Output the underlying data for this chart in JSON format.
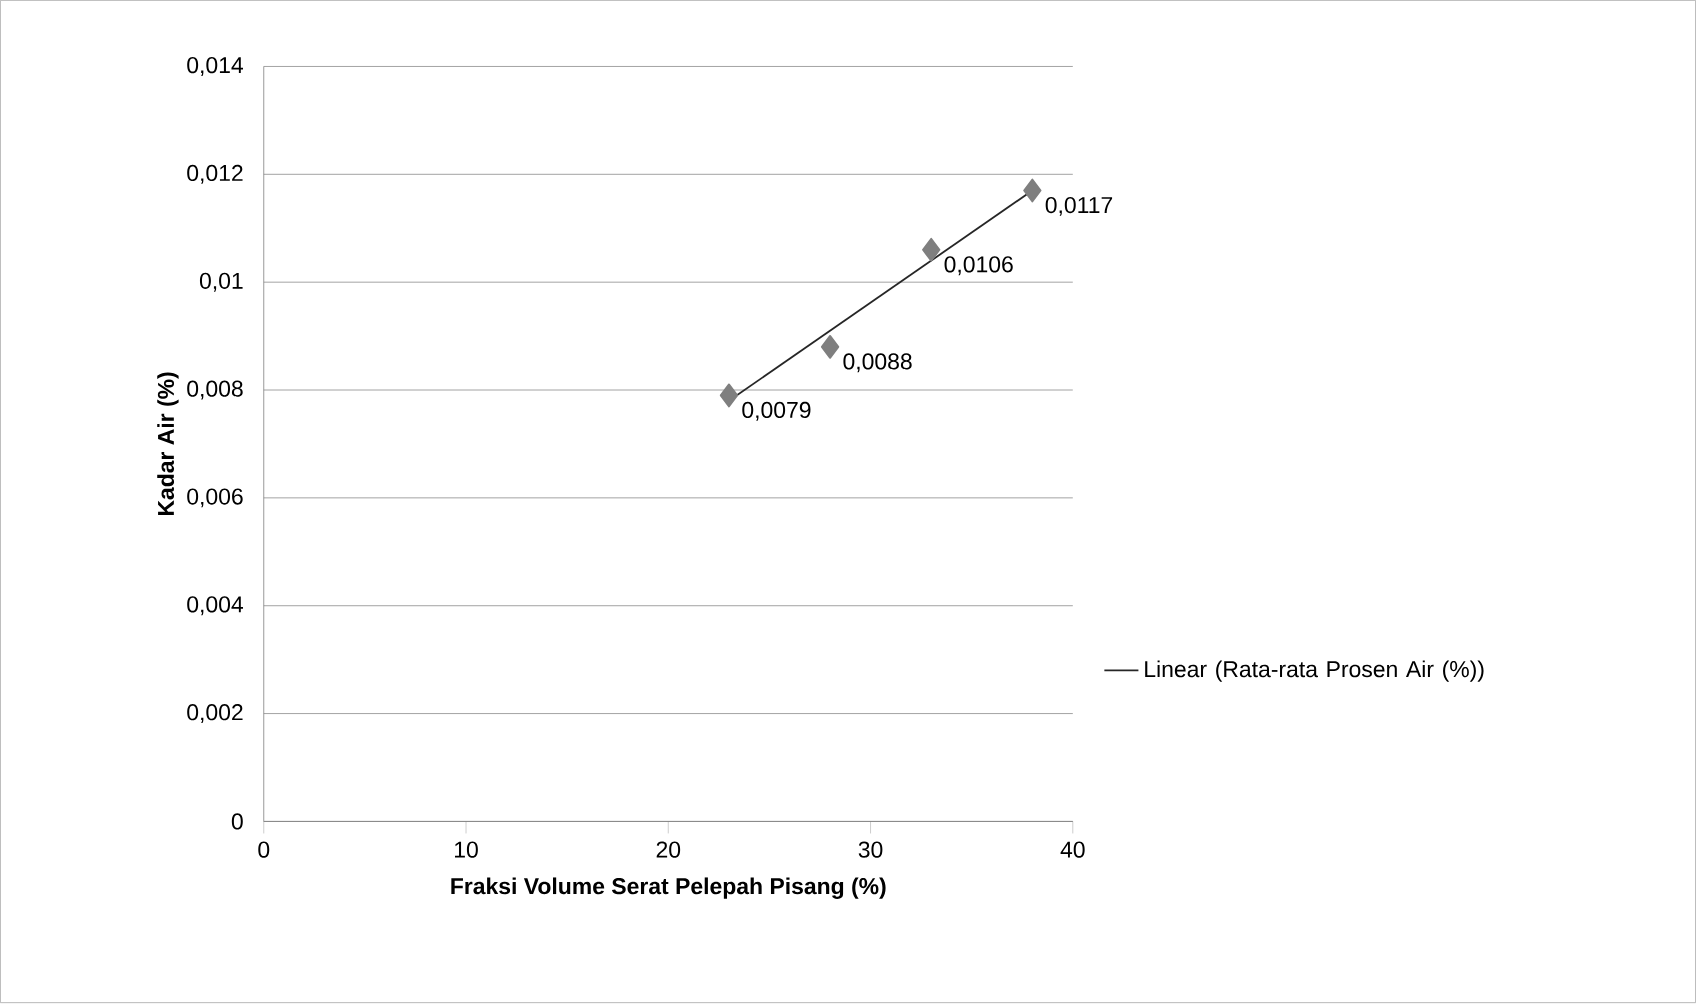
{
  "chart_data": {
    "type": "scatter",
    "xlabel": "Fraksi Volume Serat Pelepah Pisang (%)",
    "ylabel": "Kadar Air (%)",
    "xlim": [
      0,
      40
    ],
    "xticks": [
      0,
      10,
      20,
      30,
      40
    ],
    "ylim": [
      0,
      0.014
    ],
    "yticks": [
      {
        "value": 0,
        "label": "0"
      },
      {
        "value": 0.002,
        "label": "0,002"
      },
      {
        "value": 0.004,
        "label": "0,004"
      },
      {
        "value": 0.006,
        "label": "0,006"
      },
      {
        "value": 0.008,
        "label": "0,008"
      },
      {
        "value": 0.01,
        "label": "0,01"
      },
      {
        "value": 0.012,
        "label": "0,012"
      },
      {
        "value": 0.014,
        "label": "0,014"
      }
    ],
    "grid": "y",
    "legend": "right",
    "marker": "diamond",
    "series": [
      {
        "x": [
          23,
          28,
          33,
          38
        ],
        "values": [
          0.0079,
          0.0088,
          0.0106,
          0.0117
        ],
        "color": "#7f7f7f",
        "value_labels": [
          "0,0079",
          "0,0088",
          "0,0106",
          "0,0117"
        ]
      },
      {
        "type": "line",
        "name": "Linear (Rata-rata Prosen Air (%))",
        "x": [
          23,
          38
        ],
        "values": [
          0.0078,
          0.0117
        ],
        "color": "#262626",
        "line_style": "solid",
        "marker": "none"
      }
    ]
  }
}
